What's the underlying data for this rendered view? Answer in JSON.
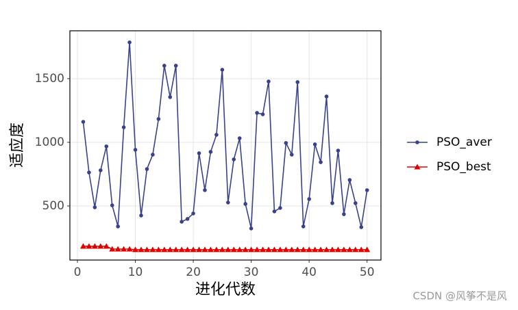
{
  "chart_data": {
    "type": "line",
    "x_label": "进化代数",
    "y_label": "适应度",
    "x": [
      1,
      2,
      3,
      4,
      5,
      6,
      7,
      8,
      9,
      10,
      11,
      12,
      13,
      14,
      15,
      16,
      17,
      18,
      19,
      20,
      21,
      22,
      23,
      24,
      25,
      26,
      27,
      28,
      29,
      30,
      31,
      32,
      33,
      34,
      35,
      36,
      37,
      38,
      39,
      40,
      41,
      42,
      43,
      44,
      45,
      46,
      47,
      48,
      49,
      50
    ],
    "series": [
      {
        "name": "PSO_aver",
        "color": "#37428a",
        "marker": "circle",
        "values": [
          1161,
          763,
          489,
          780,
          968,
          505,
          339,
          1118,
          1785,
          941,
          425,
          790,
          903,
          1183,
          1602,
          1355,
          1602,
          376,
          398,
          441,
          914,
          624,
          925,
          1059,
          1570,
          527,
          866,
          1032,
          516,
          323,
          1231,
          1220,
          1478,
          457,
          484,
          995,
          903,
          1473,
          339,
          554,
          984,
          844,
          1360,
          522,
          935,
          435,
          704,
          522,
          333,
          624
        ]
      },
      {
        "name": "PSO_best",
        "color": "#e00000",
        "marker": "triangle",
        "values": [
          183,
          183,
          183,
          183,
          183,
          161,
          161,
          161,
          161,
          156,
          156,
          156,
          156,
          156,
          156,
          156,
          156,
          156,
          156,
          156,
          156,
          156,
          156,
          156,
          156,
          156,
          156,
          156,
          156,
          156,
          156,
          156,
          156,
          156,
          156,
          156,
          156,
          156,
          156,
          156,
          156,
          156,
          156,
          156,
          156,
          156,
          156,
          156,
          156,
          156
        ]
      }
    ],
    "xlim": [
      -1.3,
      52.4
    ],
    "xticks": [
      0,
      10,
      20,
      30,
      40,
      50
    ],
    "ylim": [
      75,
      1876
    ],
    "yticks": [
      500,
      1000,
      1500
    ],
    "grid": true,
    "legend": "right",
    "watermark": "CSDN @风筝不是风"
  }
}
